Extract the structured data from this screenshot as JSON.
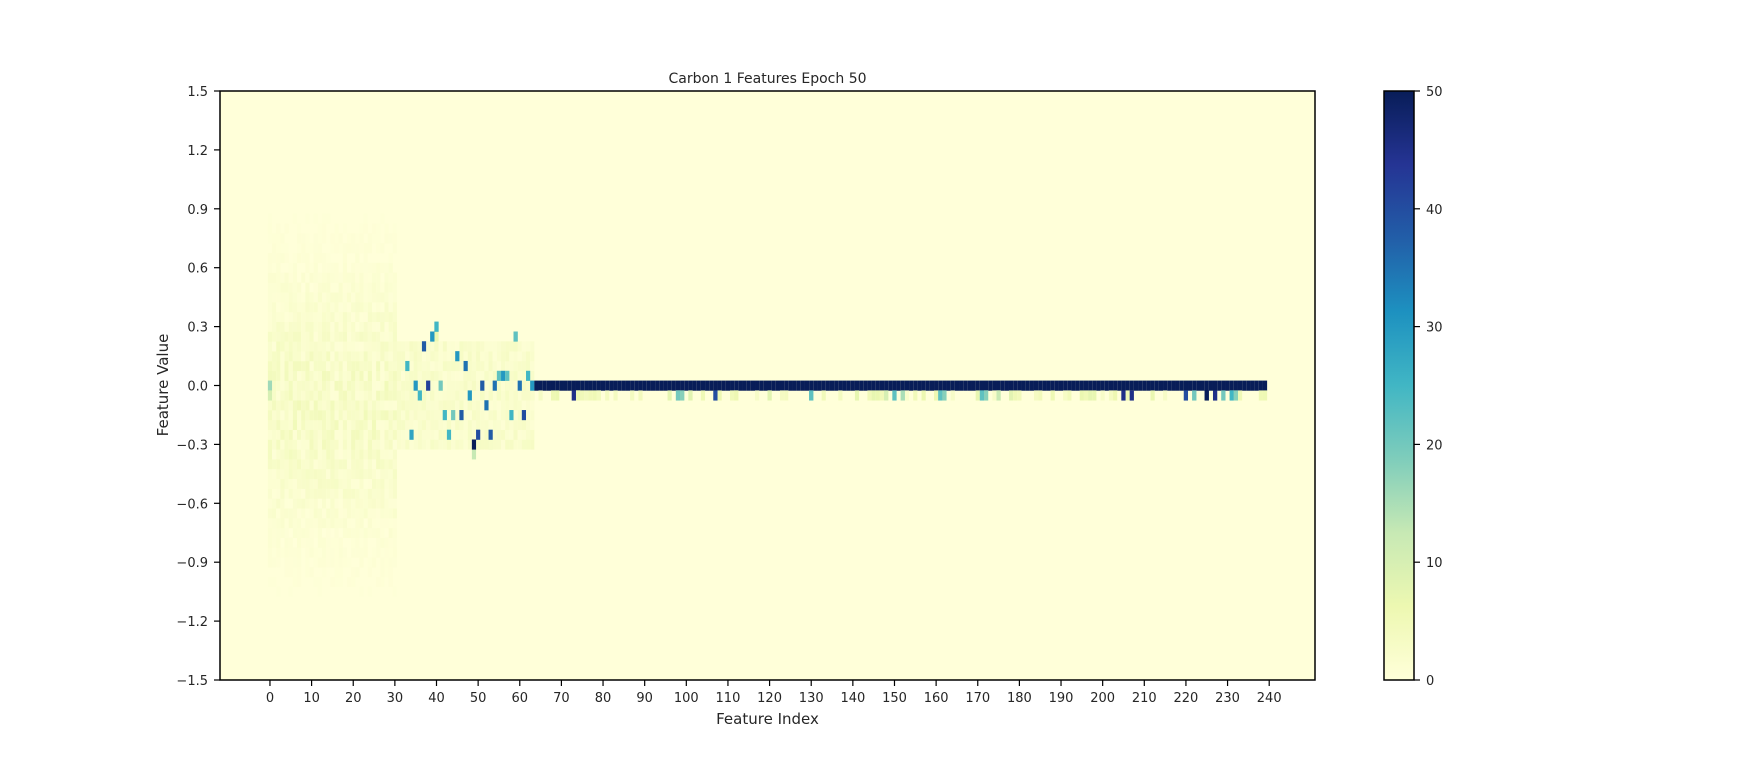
{
  "chart_data": {
    "type": "heatmap",
    "title": "Carbon 1 Features Epoch 50",
    "xlabel": "Feature Index",
    "ylabel": "Feature Value",
    "xlim": [
      -12,
      251
    ],
    "ylim": [
      -1.5,
      1.5
    ],
    "x_ticks": [
      0,
      10,
      20,
      30,
      40,
      50,
      60,
      70,
      80,
      90,
      100,
      110,
      120,
      130,
      140,
      150,
      160,
      170,
      180,
      190,
      200,
      210,
      220,
      230,
      240
    ],
    "y_ticks": [
      1.5,
      1.2,
      0.9,
      0.6,
      0.3,
      0.0,
      -0.3,
      -0.6,
      -0.9,
      -1.2,
      -1.5
    ],
    "x_tick_labels": [
      "0",
      "10",
      "20",
      "30",
      "40",
      "50",
      "60",
      "70",
      "80",
      "90",
      "100",
      "110",
      "120",
      "130",
      "140",
      "150",
      "160",
      "170",
      "180",
      "190",
      "200",
      "210",
      "220",
      "230",
      "240"
    ],
    "y_tick_labels": [
      "1.5",
      "1.2",
      "0.9",
      "0.6",
      "0.3",
      "0.0",
      "−0.3",
      "−0.6",
      "−0.9",
      "−1.2",
      "−1.5"
    ],
    "feature_count": 240,
    "bin_width": 0.05,
    "colorbar": {
      "min": 0,
      "max": 50,
      "ticks": [
        0,
        10,
        20,
        30,
        40,
        50
      ],
      "tick_labels": [
        "0",
        "10",
        "20",
        "30",
        "40",
        "50"
      ],
      "colormap": "YlGnBu",
      "stops": [
        "#ffffd9",
        "#edf8b1",
        "#c7e9b4",
        "#7fcdbb",
        "#41b6c4",
        "#1d91c0",
        "#225ea8",
        "#253494",
        "#081d58"
      ]
    },
    "background_count": 0,
    "spread_region": {
      "x_range": [
        0,
        30
      ],
      "y_range": [
        -1.25,
        0.95
      ],
      "peak_count": 4
    },
    "transition_cells": [
      {
        "x": 33,
        "y": 0.1,
        "count": 25
      },
      {
        "x": 34,
        "y": -0.25,
        "count": 28
      },
      {
        "x": 35,
        "y": 0.0,
        "count": 30
      },
      {
        "x": 36,
        "y": -0.05,
        "count": 25
      },
      {
        "x": 37,
        "y": 0.2,
        "count": 38
      },
      {
        "x": 38,
        "y": 0.0,
        "count": 42
      },
      {
        "x": 39,
        "y": 0.25,
        "count": 30
      },
      {
        "x": 40,
        "y": 0.3,
        "count": 25
      },
      {
        "x": 41,
        "y": 0.0,
        "count": 20
      },
      {
        "x": 42,
        "y": -0.15,
        "count": 25
      },
      {
        "x": 43,
        "y": -0.25,
        "count": 25
      },
      {
        "x": 44,
        "y": -0.15,
        "count": 20
      },
      {
        "x": 45,
        "y": 0.15,
        "count": 30
      },
      {
        "x": 46,
        "y": -0.15,
        "count": 38
      },
      {
        "x": 47,
        "y": 0.1,
        "count": 35
      },
      {
        "x": 48,
        "y": -0.05,
        "count": 30
      },
      {
        "x": 49,
        "y": -0.3,
        "count": 50
      },
      {
        "x": 50,
        "y": -0.25,
        "count": 40
      },
      {
        "x": 51,
        "y": 0.0,
        "count": 38
      },
      {
        "x": 52,
        "y": -0.1,
        "count": 35
      },
      {
        "x": 53,
        "y": -0.25,
        "count": 38
      },
      {
        "x": 54,
        "y": 0.0,
        "count": 35
      },
      {
        "x": 55,
        "y": 0.05,
        "count": 22
      },
      {
        "x": 56,
        "y": 0.05,
        "count": 30
      },
      {
        "x": 57,
        "y": 0.05,
        "count": 22
      },
      {
        "x": 58,
        "y": -0.15,
        "count": 25
      },
      {
        "x": 59,
        "y": 0.25,
        "count": 22
      },
      {
        "x": 60,
        "y": 0.0,
        "count": 35
      },
      {
        "x": 61,
        "y": -0.15,
        "count": 40
      },
      {
        "x": 62,
        "y": 0.05,
        "count": 25
      },
      {
        "x": 63,
        "y": 0.0,
        "count": 30
      }
    ],
    "main_band": {
      "x_range": [
        64,
        239
      ],
      "y": 0.0,
      "count": 50
    },
    "band_secondary_cells": [
      {
        "x": 73,
        "y": -0.05,
        "count": 45
      },
      {
        "x": 74,
        "y": -0.05,
        "count": 6
      },
      {
        "x": 79,
        "y": -0.05,
        "count": 4
      },
      {
        "x": 98,
        "y": -0.05,
        "count": 20
      },
      {
        "x": 99,
        "y": -0.05,
        "count": 18
      },
      {
        "x": 101,
        "y": -0.05,
        "count": 8
      },
      {
        "x": 107,
        "y": -0.05,
        "count": 40
      },
      {
        "x": 112,
        "y": -0.05,
        "count": 6
      },
      {
        "x": 120,
        "y": -0.05,
        "count": 8
      },
      {
        "x": 130,
        "y": -0.05,
        "count": 22
      },
      {
        "x": 148,
        "y": -0.05,
        "count": 10
      },
      {
        "x": 150,
        "y": -0.05,
        "count": 22
      },
      {
        "x": 152,
        "y": -0.05,
        "count": 15
      },
      {
        "x": 161,
        "y": -0.05,
        "count": 22
      },
      {
        "x": 162,
        "y": -0.05,
        "count": 18
      },
      {
        "x": 171,
        "y": -0.05,
        "count": 22
      },
      {
        "x": 172,
        "y": -0.05,
        "count": 18
      },
      {
        "x": 175,
        "y": -0.05,
        "count": 12
      },
      {
        "x": 205,
        "y": -0.05,
        "count": 45
      },
      {
        "x": 207,
        "y": -0.05,
        "count": 45
      },
      {
        "x": 220,
        "y": -0.05,
        "count": 40
      },
      {
        "x": 222,
        "y": -0.05,
        "count": 20
      },
      {
        "x": 225,
        "y": -0.05,
        "count": 50
      },
      {
        "x": 227,
        "y": -0.05,
        "count": 45
      },
      {
        "x": 229,
        "y": -0.05,
        "count": 20
      },
      {
        "x": 231,
        "y": -0.05,
        "count": 25
      },
      {
        "x": 232,
        "y": -0.05,
        "count": 18
      }
    ]
  }
}
